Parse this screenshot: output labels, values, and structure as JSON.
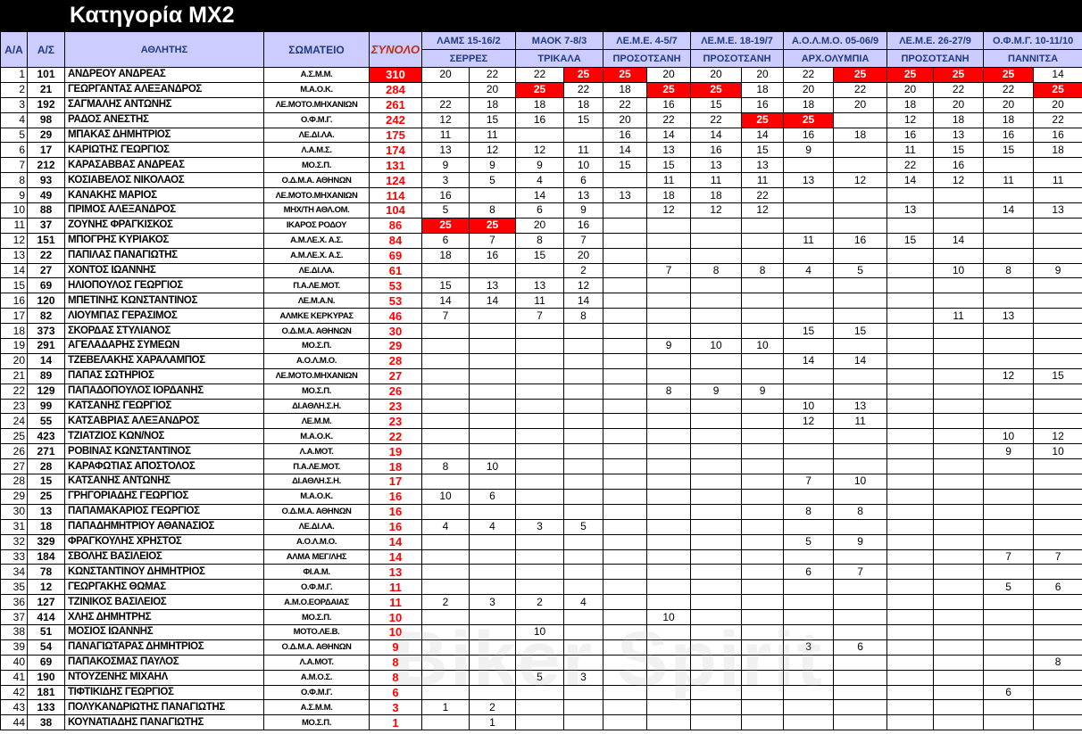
{
  "title": "Κατηγορία MX2",
  "watermark": "Biker Spirit",
  "colors": {
    "header_bg": "#ccccff",
    "highlight": "#ff0000",
    "total_text": "#ff0000"
  },
  "headers": {
    "aa": "Α/Α",
    "as": "Α/Σ",
    "athlete": "ΑΘΛΗΤΗΣ",
    "club": "ΣΩΜΑΤΕΙΟ",
    "total": "ΣΥΝΟΛΟ"
  },
  "events": [
    {
      "name": "ΛΑΜΣ 15-16/2",
      "location": "ΣΕΡΡΕΣ"
    },
    {
      "name": "ΜΑΟΚ 7-8/3",
      "location": "ΤΡΙΚΑΛΑ"
    },
    {
      "name": "ΛΕ.Μ.Ε. 4-5/7",
      "location": "ΠΡΟΣΟΤΣΑΝΗ"
    },
    {
      "name": "ΛΕ.Μ.Ε. 18-19/7",
      "location": "ΠΡΟΣΟΤΣΑΝΗ"
    },
    {
      "name": "Α.Ο.Λ.Μ.Ο. 05-06/9",
      "location": "ΑΡΧ.ΟΛΥΜΠΙΑ"
    },
    {
      "name": "ΛΕ.Μ.Ε. 26-27/9",
      "location": "ΠΡΟΣΟΤΣΑΝΗ"
    },
    {
      "name": "Ο.Φ.Μ.Γ. 10-11/10",
      "location": "ΠΑΝΝΙΤΣΑ"
    }
  ],
  "rows": [
    {
      "aa": "1",
      "as": "101",
      "name": "ΑΝΔΡΕΟΥ ΑΝΔΡΕΑΣ",
      "club": "Α.Σ.Μ.Μ.",
      "total": "310",
      "scores": [
        "20",
        "22",
        "22",
        "25",
        "25",
        "20",
        "20",
        "20",
        "22",
        "25",
        "25",
        "25",
        "25",
        "14"
      ]
    },
    {
      "aa": "2",
      "as": "21",
      "name": "ΓΕΩΡΓΑΝΤΑΣ ΑΛΕΞΑΝΔΡΟΣ",
      "club": "Μ.Α.Ο.Κ.",
      "total": "284",
      "scores": [
        "",
        "20",
        "25",
        "22",
        "18",
        "25",
        "25",
        "18",
        "20",
        "22",
        "20",
        "22",
        "22",
        "25"
      ]
    },
    {
      "aa": "3",
      "as": "192",
      "name": "ΣΑΓΜΑΛΗΣ ΑΝΤΩΝΗΣ",
      "club": "ΛΕ.ΜΟΤΟ.ΜΗΧΑΝΙΩΝ",
      "total": "261",
      "scores": [
        "22",
        "18",
        "18",
        "18",
        "22",
        "16",
        "15",
        "16",
        "18",
        "20",
        "18",
        "20",
        "20",
        "20"
      ]
    },
    {
      "aa": "4",
      "as": "98",
      "name": "ΡΑΔΟΣ ΑΝΕΣΤΗΣ",
      "club": "Ο.Φ.Μ.Γ.",
      "total": "242",
      "scores": [
        "12",
        "15",
        "16",
        "15",
        "20",
        "22",
        "22",
        "25",
        "25",
        "",
        "12",
        "18",
        "18",
        "22"
      ]
    },
    {
      "aa": "5",
      "as": "29",
      "name": "ΜΠΑΚΑΣ ΔΗΜΗΤΡΙΟΣ",
      "club": "ΛΕ.ΔΙ.ΛΑ.",
      "total": "175",
      "scores": [
        "11",
        "11",
        "",
        "",
        "16",
        "14",
        "14",
        "14",
        "16",
        "18",
        "16",
        "13",
        "16",
        "16"
      ]
    },
    {
      "aa": "6",
      "as": "17",
      "name": "ΚΑΡΙΩΤΗΣ ΓΕΩΡΓΙΟΣ",
      "club": "Λ.Α.Μ.Σ.",
      "total": "174",
      "scores": [
        "13",
        "12",
        "12",
        "11",
        "14",
        "13",
        "16",
        "15",
        "9",
        "",
        "11",
        "15",
        "15",
        "18"
      ]
    },
    {
      "aa": "7",
      "as": "212",
      "name": "ΚΑΡΑΣΑΒΒΑΣ ΑΝΔΡΕΑΣ",
      "club": "ΜΟ.Σ.Π.",
      "total": "131",
      "scores": [
        "9",
        "9",
        "9",
        "10",
        "15",
        "15",
        "13",
        "13",
        "",
        "",
        "22",
        "16",
        "",
        ""
      ]
    },
    {
      "aa": "8",
      "as": "93",
      "name": "ΚΟΣΙΑΒΕΛΟΣ ΝΙΚΟΛΑΟΣ",
      "club": "Ο.Δ.Μ.Α. ΑΘΗΝΩΝ",
      "total": "124",
      "scores": [
        "3",
        "5",
        "4",
        "6",
        "",
        "11",
        "11",
        "11",
        "13",
        "12",
        "14",
        "12",
        "11",
        "11"
      ]
    },
    {
      "aa": "9",
      "as": "49",
      "name": "ΚΑΝΑΚΗΣ ΜΑΡΙΟΣ",
      "club": "ΛΕ.ΜΟΤΟ.ΜΗΧΑΝΙΩΝ",
      "total": "114",
      "scores": [
        "16",
        "",
        "14",
        "13",
        "13",
        "18",
        "18",
        "22",
        "",
        "",
        "",
        "",
        "",
        ""
      ]
    },
    {
      "aa": "10",
      "as": "88",
      "name": "ΠΡΙΜΟΣ ΑΛΕΞΑΝΔΡΟΣ",
      "club": "ΜΗΧ/ΤΗ ΑΘΛ.ΟΜ.",
      "total": "104",
      "scores": [
        "5",
        "8",
        "6",
        "9",
        "",
        "12",
        "12",
        "12",
        "",
        "",
        "13",
        "",
        "14",
        "13"
      ]
    },
    {
      "aa": "11",
      "as": "37",
      "name": "ΖΟΥΝΗΣ ΦΡΑΓΚΙΣΚΟΣ",
      "club": "ΙΚΑΡΟΣ ΡΟΔΟΥ",
      "total": "86",
      "scores": [
        "25",
        "25",
        "20",
        "16",
        "",
        "",
        "",
        "",
        "",
        "",
        "",
        "",
        "",
        ""
      ]
    },
    {
      "aa": "12",
      "as": "151",
      "name": "ΜΠΟΓΡΗΣ ΚΥΡΙΑΚΟΣ",
      "club": "Α.Μ.ΛΕ.Χ. Α.Σ.",
      "total": "84",
      "scores": [
        "6",
        "7",
        "8",
        "7",
        "",
        "",
        "",
        "",
        "11",
        "16",
        "15",
        "14",
        "",
        ""
      ]
    },
    {
      "aa": "13",
      "as": "22",
      "name": "ΠΑΠΙΛΑΣ ΠΑΝΑΓΙΩΤΗΣ",
      "club": "Α.Μ.ΛΕ.Χ. Α.Σ.",
      "total": "69",
      "scores": [
        "18",
        "16",
        "15",
        "20",
        "",
        "",
        "",
        "",
        "",
        "",
        "",
        "",
        "",
        ""
      ]
    },
    {
      "aa": "14",
      "as": "27",
      "name": "ΧΟΝΤΟΣ ΙΩΑΝΝΗΣ",
      "club": "ΛΕ.ΔΙ.ΛΑ.",
      "total": "61",
      "scores": [
        "",
        "",
        "",
        "2",
        "",
        "7",
        "8",
        "8",
        "4",
        "5",
        "",
        "10",
        "8",
        "9"
      ]
    },
    {
      "aa": "15",
      "as": "69",
      "name": "ΗΛΙΟΠΟΥΛΟΣ ΓΕΩΡΓΙΟΣ",
      "club": "Π.Α.ΛΕ.ΜΟΤ.",
      "total": "53",
      "scores": [
        "15",
        "13",
        "13",
        "12",
        "",
        "",
        "",
        "",
        "",
        "",
        "",
        "",
        "",
        ""
      ]
    },
    {
      "aa": "16",
      "as": "120",
      "name": "ΜΠΕΤΙΝΗΣ ΚΩΝΣΤΑΝΤΙΝΟΣ",
      "club": "ΛΕ.Μ.Α.Ν.",
      "total": "53",
      "scores": [
        "14",
        "14",
        "11",
        "14",
        "",
        "",
        "",
        "",
        "",
        "",
        "",
        "",
        "",
        ""
      ]
    },
    {
      "aa": "17",
      "as": "82",
      "name": "ΛΙΟΥΜΠΑΣ ΓΕΡΑΣΙΜΟΣ",
      "club": "ΑΛΜΚΕ ΚΕΡΚΥΡΑΣ",
      "total": "46",
      "scores": [
        "7",
        "",
        "7",
        "8",
        "",
        "",
        "",
        "",
        "",
        "",
        "",
        "11",
        "13",
        ""
      ]
    },
    {
      "aa": "18",
      "as": "373",
      "name": "ΣΚΟΡΔΑΣ ΣΤΥΛΙΑΝΟΣ",
      "club": "Ο.Δ.Μ.Α. ΑΘΗΝΩΝ",
      "total": "30",
      "scores": [
        "",
        "",
        "",
        "",
        "",
        "",
        "",
        "",
        "15",
        "15",
        "",
        "",
        "",
        ""
      ]
    },
    {
      "aa": "19",
      "as": "291",
      "name": "ΑΓΕΛΑΔΑΡΗΣ ΣΥΜΕΩΝ",
      "club": "ΜΟ.Σ.Π.",
      "total": "29",
      "scores": [
        "",
        "",
        "",
        "",
        "",
        "9",
        "10",
        "10",
        "",
        "",
        "",
        "",
        "",
        ""
      ]
    },
    {
      "aa": "20",
      "as": "14",
      "name": "ΤΖΕΒΕΛΑΚΗΣ ΧΑΡΑΛΑΜΠΟΣ",
      "club": "Α.Ο.Λ.Μ.Ο.",
      "total": "28",
      "scores": [
        "",
        "",
        "",
        "",
        "",
        "",
        "",
        "",
        "14",
        "14",
        "",
        "",
        "",
        ""
      ]
    },
    {
      "aa": "21",
      "as": "89",
      "name": "ΠΑΠΑΣ ΣΩΤΗΡΙΟΣ",
      "club": "ΛΕ.ΜΟΤΟ.ΜΗΧΑΝΙΩΝ",
      "total": "27",
      "scores": [
        "",
        "",
        "",
        "",
        "",
        "",
        "",
        "",
        "",
        "",
        "",
        "",
        "12",
        "15"
      ]
    },
    {
      "aa": "22",
      "as": "129",
      "name": "ΠΑΠΑΔΟΠΟΥΛΟΣ ΙΟΡΔΑΝΗΣ",
      "club": "ΜΟ.Σ.Π.",
      "total": "26",
      "scores": [
        "",
        "",
        "",
        "",
        "",
        "8",
        "9",
        "9",
        "",
        "",
        "",
        "",
        "",
        ""
      ]
    },
    {
      "aa": "23",
      "as": "99",
      "name": "ΚΑΤΣΑΝΗΣ ΓΕΩΡΓΙΟΣ",
      "club": "ΔΙ.ΑΘΛΗ.Σ.Η.",
      "total": "23",
      "scores": [
        "",
        "",
        "",
        "",
        "",
        "",
        "",
        "",
        "10",
        "13",
        "",
        "",
        "",
        ""
      ]
    },
    {
      "aa": "24",
      "as": "55",
      "name": "ΚΑΤΣΑΒΡΙΑΣ ΑΛΕΞΑΝΔΡΟΣ",
      "club": "ΛΕ.Μ.Μ.",
      "total": "23",
      "scores": [
        "",
        "",
        "",
        "",
        "",
        "",
        "",
        "",
        "12",
        "11",
        "",
        "",
        "",
        ""
      ]
    },
    {
      "aa": "25",
      "as": "423",
      "name": "ΤΖΙΑΤΖΙΟΣ ΚΩΝ/ΝΟΣ",
      "club": "Μ.Α.Ο.Κ.",
      "total": "22",
      "scores": [
        "",
        "",
        "",
        "",
        "",
        "",
        "",
        "",
        "",
        "",
        "",
        "",
        "10",
        "12"
      ]
    },
    {
      "aa": "26",
      "as": "271",
      "name": "ΡΟΒΙΝΑΣ ΚΩΝΣΤΑΝΤΙΝΟΣ",
      "club": "Λ.Α.ΜΟΤ.",
      "total": "19",
      "scores": [
        "",
        "",
        "",
        "",
        "",
        "",
        "",
        "",
        "",
        "",
        "",
        "",
        "9",
        "10"
      ]
    },
    {
      "aa": "27",
      "as": "28",
      "name": "ΚΑΡΑΦΩΤΙΑΣ ΑΠΟΣΤΟΛΟΣ",
      "club": "Π.Α.ΛΕ.ΜΟΤ.",
      "total": "18",
      "scores": [
        "8",
        "10",
        "",
        "",
        "",
        "",
        "",
        "",
        "",
        "",
        "",
        "",
        "",
        ""
      ]
    },
    {
      "aa": "28",
      "as": "15",
      "name": "ΚΑΤΣΑΝΗΣ ΑΝΤΩΝΗΣ",
      "club": "ΔΙ.ΑΘΛΗ.Σ.Η.",
      "total": "17",
      "scores": [
        "",
        "",
        "",
        "",
        "",
        "",
        "",
        "",
        "7",
        "10",
        "",
        "",
        "",
        ""
      ]
    },
    {
      "aa": "29",
      "as": "25",
      "name": "ΓΡΗΓΟΡΙΑΔΗΣ ΓΕΩΡΓΙΟΣ",
      "club": "Μ.Α.Ο.Κ.",
      "total": "16",
      "scores": [
        "10",
        "6",
        "",
        "",
        "",
        "",
        "",
        "",
        "",
        "",
        "",
        "",
        "",
        ""
      ]
    },
    {
      "aa": "30",
      "as": "13",
      "name": "ΠΑΠΑΜΑΚΑΡΙΟΣ ΓΕΩΡΓΙΟΣ",
      "club": "Ο.Δ.Μ.Α. ΑΘΗΝΩΝ",
      "total": "16",
      "scores": [
        "",
        "",
        "",
        "",
        "",
        "",
        "",
        "",
        "8",
        "8",
        "",
        "",
        "",
        ""
      ]
    },
    {
      "aa": "31",
      "as": "18",
      "name": "ΠΑΠΑΔΗΜΗΤΡΙΟΥ ΑΘΑΝΑΣΙΟΣ",
      "club": "ΛΕ.ΔΙ.ΛΑ.",
      "total": "16",
      "scores": [
        "4",
        "4",
        "3",
        "5",
        "",
        "",
        "",
        "",
        "",
        "",
        "",
        "",
        "",
        ""
      ]
    },
    {
      "aa": "32",
      "as": "329",
      "name": "ΦΡΑΓΚΟΥΛΗΣ ΧΡΗΣΤΟΣ",
      "club": "Α.Ο.Λ.Μ.Ο.",
      "total": "14",
      "scores": [
        "",
        "",
        "",
        "",
        "",
        "",
        "",
        "",
        "5",
        "9",
        "",
        "",
        "",
        ""
      ]
    },
    {
      "aa": "33",
      "as": "184",
      "name": "ΣΒΟΛΗΣ ΒΑΣΙΛΕΙΟΣ",
      "club": "ΑΛΜΑ ΜΕΓ/ΛΗΣ",
      "total": "14",
      "scores": [
        "",
        "",
        "",
        "",
        "",
        "",
        "",
        "",
        "",
        "",
        "",
        "",
        "7",
        "7"
      ]
    },
    {
      "aa": "34",
      "as": "78",
      "name": "ΚΩΝΣΤΑΝΤΙΝΟΥ ΔΗΜΗΤΡΙΟΣ",
      "club": "ΦΙ.Α.Μ.",
      "total": "13",
      "scores": [
        "",
        "",
        "",
        "",
        "",
        "",
        "",
        "",
        "6",
        "7",
        "",
        "",
        "",
        ""
      ]
    },
    {
      "aa": "35",
      "as": "12",
      "name": "ΓΕΩΡΓΑΚΗΣ ΘΩΜΑΣ",
      "club": "Ο.Φ.Μ.Γ.",
      "total": "11",
      "scores": [
        "",
        "",
        "",
        "",
        "",
        "",
        "",
        "",
        "",
        "",
        "",
        "",
        "5",
        "6"
      ]
    },
    {
      "aa": "36",
      "as": "127",
      "name": "ΤΖΙΝΙΚΟΣ ΒΑΣΙΛΕΙΟΣ",
      "club": "Α.Μ.Ο.ΕΟΡΔΑΙΑΣ",
      "total": "11",
      "scores": [
        "2",
        "3",
        "2",
        "4",
        "",
        "",
        "",
        "",
        "",
        "",
        "",
        "",
        "",
        ""
      ]
    },
    {
      "aa": "37",
      "as": "414",
      "name": "ΧΛΗΣ ΔΗΜΗΤΡΗΣ",
      "club": "ΜΟ.Σ.Π.",
      "total": "10",
      "scores": [
        "",
        "",
        "",
        "",
        "",
        "10",
        "",
        "",
        "",
        "",
        "",
        "",
        "",
        ""
      ]
    },
    {
      "aa": "38",
      "as": "51",
      "name": "ΜΟΣΙΟΣ ΙΩΑΝΝΗΣ",
      "club": "ΜΟΤΟ.ΛΕ.Β.",
      "total": "10",
      "scores": [
        "",
        "",
        "10",
        "",
        "",
        "",
        "",
        "",
        "",
        "",
        "",
        "",
        "",
        ""
      ]
    },
    {
      "aa": "39",
      "as": "54",
      "name": "ΠΑΝΑΓΙΩΤΑΡΑΣ ΔΗΜΗΤΡΙΟΣ",
      "club": "Ο.Δ.Μ.Α. ΑΘΗΝΩΝ",
      "total": "9",
      "scores": [
        "",
        "",
        "",
        "",
        "",
        "",
        "",
        "",
        "3",
        "6",
        "",
        "",
        "",
        ""
      ]
    },
    {
      "aa": "40",
      "as": "69",
      "name": "ΠΑΠΑΚΟΣΜΑΣ ΠΑΥΛΟΣ",
      "club": "Λ.Α.ΜΟΤ.",
      "total": "8",
      "scores": [
        "",
        "",
        "",
        "",
        "",
        "",
        "",
        "",
        "",
        "",
        "",
        "",
        "",
        "8"
      ]
    },
    {
      "aa": "41",
      "as": "190",
      "name": "ΝΤΟΥΖΕΝΗΣ ΜΙΧΑΗΛ",
      "club": "Α.Μ.Ο.Σ.",
      "total": "8",
      "scores": [
        "",
        "",
        "5",
        "3",
        "",
        "",
        "",
        "",
        "",
        "",
        "",
        "",
        "",
        ""
      ]
    },
    {
      "aa": "42",
      "as": "181",
      "name": "ΤΙΦΤΙΚΙΔΗΣ ΓΕΩΡΓΙΟΣ",
      "club": "Ο.Φ.Μ.Γ.",
      "total": "6",
      "scores": [
        "",
        "",
        "",
        "",
        "",
        "",
        "",
        "",
        "",
        "",
        "",
        "",
        "6",
        ""
      ]
    },
    {
      "aa": "43",
      "as": "133",
      "name": "ΠΟΛΥΚΑΝΔΡΙΩΤΗΣ ΠΑΝΑΓΙΩΤΗΣ",
      "club": "Α.Σ.Μ.Μ.",
      "total": "3",
      "scores": [
        "1",
        "2",
        "",
        "",
        "",
        "",
        "",
        "",
        "",
        "",
        "",
        "",
        "",
        ""
      ]
    },
    {
      "aa": "44",
      "as": "38",
      "name": "ΚΟΥΝΑΤΙΑΔΗΣ ΠΑΝΑΓΙΩΤΗΣ",
      "club": "ΜΟ.Σ.Π.",
      "total": "1",
      "scores": [
        "",
        "1",
        "",
        "",
        "",
        "",
        "",
        "",
        "",
        "",
        "",
        "",
        "",
        ""
      ]
    }
  ]
}
